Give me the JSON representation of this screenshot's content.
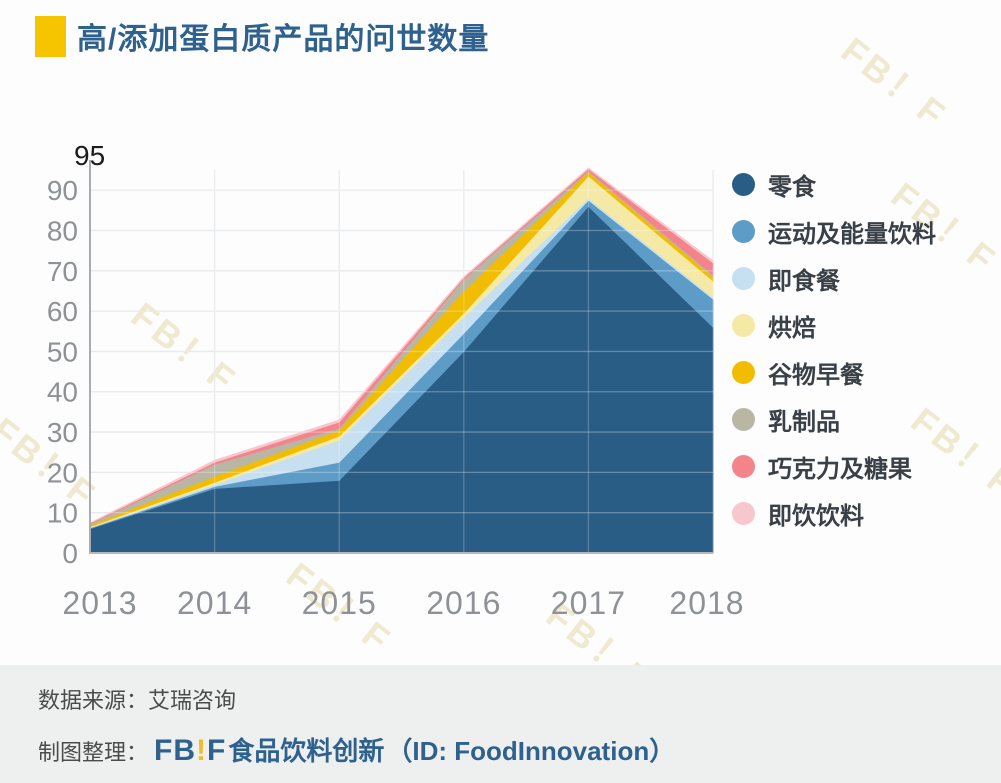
{
  "title": {
    "text": "高/添加蛋白质产品的问世数量",
    "accent_color": "#f6c500"
  },
  "chart_data": {
    "type": "area",
    "stacked": true,
    "title": "高/添加蛋白质产品的问世数量",
    "x": [
      "2013",
      "2014",
      "2015",
      "2016",
      "2017",
      "2018"
    ],
    "series": [
      {
        "name": "零食",
        "color": "#2a5d85",
        "values": [
          6,
          16,
          18,
          50,
          86,
          56
        ]
      },
      {
        "name": "运动及能量饮料",
        "color": "#5e9cc8",
        "values": [
          0.2,
          0.5,
          4.5,
          4.5,
          1.5,
          7
        ]
      },
      {
        "name": "即食餐",
        "color": "#c6e0f2",
        "values": [
          0.1,
          0.5,
          5.5,
          4,
          0.5,
          0.5
        ]
      },
      {
        "name": "烘焙",
        "color": "#f4e9a5",
        "values": [
          0.2,
          0.5,
          1,
          1,
          5.5,
          4
        ]
      },
      {
        "name": "谷物早餐",
        "color": "#f2bd00",
        "values": [
          0.4,
          1.5,
          1.5,
          5.5,
          1,
          1
        ]
      },
      {
        "name": "乳制品",
        "color": "#b9b7a3",
        "values": [
          0.3,
          3,
          0.5,
          3,
          0.3,
          0.5
        ]
      },
      {
        "name": "巧克力及糖果",
        "color": "#f4838c",
        "values": [
          0.2,
          0.5,
          1.5,
          0.3,
          0.5,
          3
        ]
      },
      {
        "name": "即饮饮料",
        "color": "#f8c6cd",
        "values": [
          0.1,
          0.5,
          0.5,
          0.2,
          0.2,
          0.5
        ]
      }
    ],
    "ylim": [
      0,
      95
    ],
    "yticks": [
      0,
      10,
      20,
      30,
      40,
      50,
      60,
      70,
      80,
      90
    ],
    "ymax_label": "95",
    "xlabel": "",
    "ylabel": "",
    "grid": true,
    "legend_position": "right"
  },
  "footer": {
    "source_line": "数据来源：艾瑞咨询",
    "credit_label": "制图整理：",
    "logo_fb": "FB",
    "logo_bang": "!",
    "logo_f": "F",
    "logo_name": "食品饮料创新",
    "logo_id": "（ID: FoodInnovation）"
  },
  "watermark_text": "FB！F"
}
